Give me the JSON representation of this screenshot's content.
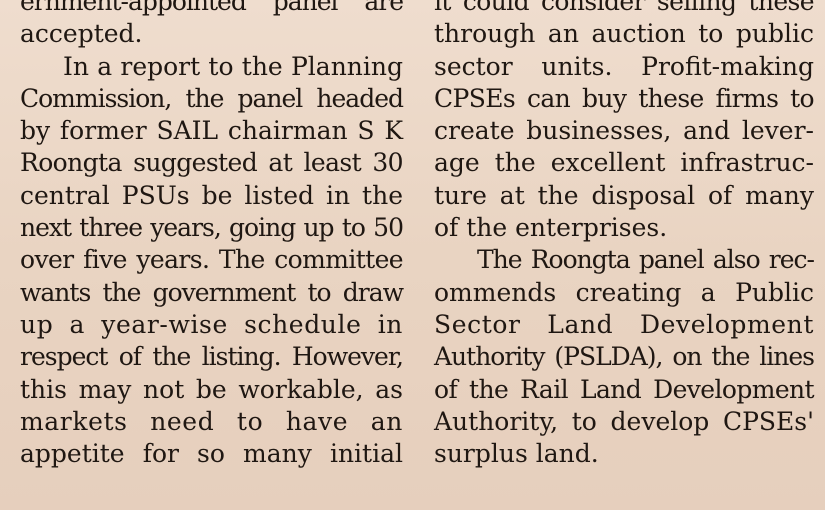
{
  "article": {
    "left_column": [
      {
        "text": "ernment-appointed panel are",
        "style": "line cond"
      },
      {
        "text": "accepted.",
        "style": "line last"
      },
      {
        "text": "In a report to the Planning",
        "style": "line indent"
      },
      {
        "text": "Commission, the panel headed",
        "style": "line cond"
      },
      {
        "text": "by former SAIL chairman S K",
        "style": "line"
      },
      {
        "text": "Roongta suggested at least 30",
        "style": "line tight"
      },
      {
        "text": "central PSUs be listed in the",
        "style": "line"
      },
      {
        "text": "next three years, going up to 50",
        "style": "line cond"
      },
      {
        "text": "over five years. The committee",
        "style": "line tight"
      },
      {
        "text": "wants the government to draw",
        "style": "line cond"
      },
      {
        "text": "up a year-wise schedule in",
        "style": "line wide"
      },
      {
        "text": "respect of the listing. However,",
        "style": "line cond"
      },
      {
        "text": "this may not be workable, as",
        "style": "line"
      },
      {
        "text": "markets need to have an",
        "style": "line wide"
      },
      {
        "text": "appetite for so many initial",
        "style": "line"
      }
    ],
    "right_column": [
      {
        "text": "it could consider selling these",
        "style": "line tight"
      },
      {
        "text": "through an auction to public",
        "style": "line"
      },
      {
        "text": "sector units. Profit-making",
        "style": "line"
      },
      {
        "text": "CPSEs can buy these firms to",
        "style": "line tight"
      },
      {
        "text": "create businesses, and lever-",
        "style": "line"
      },
      {
        "text": "age the excellent infrastruc-",
        "style": "line"
      },
      {
        "text": "ture at the disposal of many",
        "style": "line"
      },
      {
        "text": "of the enterprises.",
        "style": "line last"
      },
      {
        "text": "The Roongta panel also rec-",
        "style": "line indent cond"
      },
      {
        "text": "ommends creating a Public",
        "style": "line"
      },
      {
        "text": "Sector Land Development",
        "style": "line wide"
      },
      {
        "text": "Authority (PSLDA), on the lines",
        "style": "line cond"
      },
      {
        "text": "of the Rail Land Development",
        "style": "line tight"
      },
      {
        "text": "Authority, to develop CPSEs'",
        "style": "line"
      },
      {
        "text": "surplus land.",
        "style": "line last"
      }
    ]
  }
}
